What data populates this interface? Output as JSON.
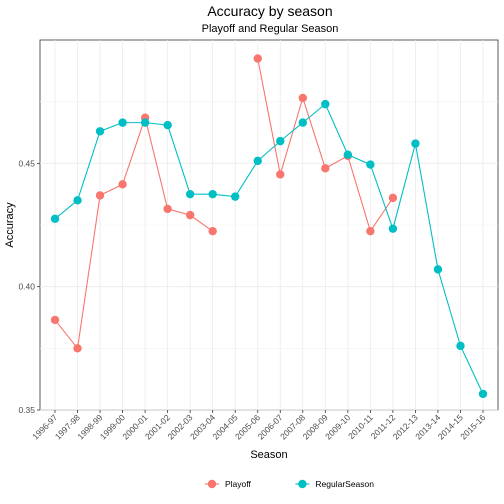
{
  "chart_data": {
    "type": "line",
    "title": "Accuracy by season",
    "subtitle": "Playoff and Regular Season",
    "xlabel": "Season",
    "ylabel": "Accuracy",
    "ylim": [
      0.35,
      0.5
    ],
    "yticks": [
      0.35,
      0.4,
      0.45
    ],
    "ytick_labels": [
      "0.35",
      "0.40",
      "0.45"
    ],
    "grid": true,
    "legend_position": "bottom",
    "categories": [
      "1996-97",
      "1997-98",
      "1998-99",
      "1999-00",
      "2000-01",
      "2001-02",
      "2002-03",
      "2003-04",
      "2004-05",
      "2005-06",
      "2006-07",
      "2007-08",
      "2008-09",
      "2009-10",
      "2010-11",
      "2011-12",
      "2012-13",
      "2013-14",
      "2014-15",
      "2015-16"
    ],
    "series": [
      {
        "name": "Playoff",
        "color": "#F8766D",
        "values": [
          0.3865,
          0.375,
          0.437,
          0.4415,
          0.4685,
          0.4315,
          0.429,
          0.4225,
          null,
          0.4925,
          0.4455,
          0.4765,
          0.448,
          0.453,
          0.4225,
          0.436,
          null,
          null,
          null,
          null
        ]
      },
      {
        "name": "RegularSeason",
        "color": "#00BFC4",
        "values": [
          0.4275,
          0.435,
          0.463,
          0.4665,
          0.4665,
          0.4655,
          0.4375,
          0.4375,
          0.4365,
          0.451,
          0.459,
          0.4665,
          0.474,
          0.4535,
          0.4495,
          0.4235,
          0.458,
          0.407,
          0.376,
          0.3565
        ]
      }
    ]
  }
}
